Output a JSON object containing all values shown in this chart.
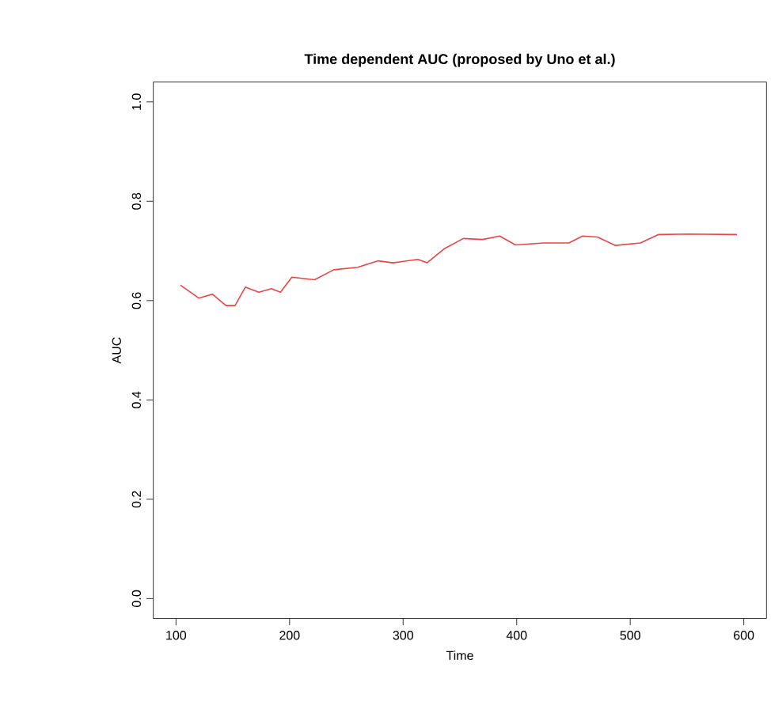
{
  "chart_data": {
    "type": "line",
    "title": "Time dependent AUC (proposed by Uno et al.)",
    "xlabel": "Time",
    "ylabel": "AUC",
    "xlim": [
      80,
      620
    ],
    "ylim": [
      -0.04,
      1.04
    ],
    "xticks": [
      100,
      200,
      300,
      400,
      500,
      600
    ],
    "yticks": [
      {
        "value": 0,
        "label": "0.0"
      },
      0.2,
      0.4,
      0.6,
      0.8,
      {
        "value": 1,
        "label": "1.0"
      }
    ],
    "grid": false,
    "line_style": "solid",
    "marker": "none",
    "series": [
      {
        "color": "#ee4444",
        "x": [
          104,
          120,
          132,
          144,
          152,
          161,
          173,
          184,
          192,
          202,
          222,
          239,
          260,
          278,
          291,
          313,
          321,
          336,
          353,
          370,
          385,
          399,
          424,
          446,
          458,
          471,
          487,
          509,
          525,
          551,
          594
        ],
        "values": [
          0.631,
          0.605,
          0.613,
          0.59,
          0.59,
          0.627,
          0.617,
          0.624,
          0.617,
          0.647,
          0.642,
          0.662,
          0.667,
          0.68,
          0.676,
          0.683,
          0.676,
          0.704,
          0.725,
          0.723,
          0.73,
          0.712,
          0.716,
          0.716,
          0.73,
          0.728,
          0.711,
          0.716,
          0.733,
          0.734,
          0.733
        ]
      }
    ]
  }
}
